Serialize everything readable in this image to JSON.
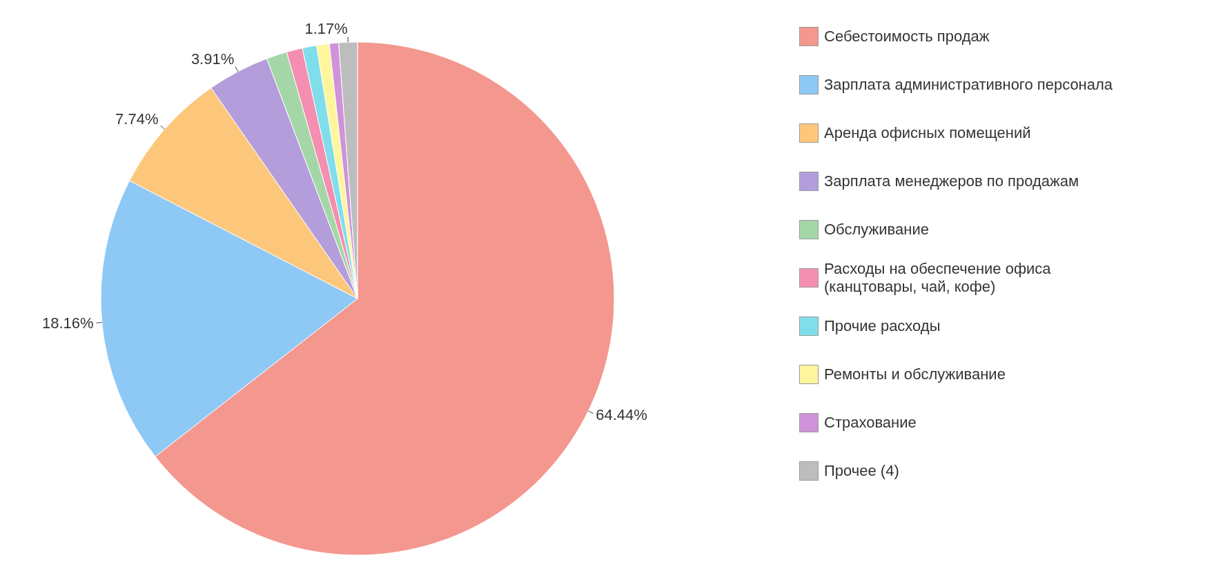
{
  "chart_data": {
    "type": "pie",
    "categories": [
      "Себестоимость продаж",
      "Зарплата административного персонала",
      "Аренда офисных помещений",
      "Зарплата менеджеров по продажам",
      "Обслуживание",
      "Расходы на обеспечение офиса (канцтовары, чай, кофе)",
      "Прочие расходы",
      "Ремонты и обслуживание",
      "Страхование",
      "Прочее (4)"
    ],
    "values": [
      64.44,
      18.16,
      7.74,
      3.91,
      1.3,
      1.0,
      0.9,
      0.8,
      0.58,
      1.17
    ],
    "value_labels": [
      "64.44%",
      "18.16%",
      "7.74%",
      "3.91%",
      null,
      null,
      null,
      null,
      null,
      "1.17%"
    ],
    "colors": [
      "#f4978e",
      "#8ec8f5",
      "#fdc77b",
      "#b39ddb",
      "#a5d6a7",
      "#f48fb1",
      "#80deea",
      "#fff59d",
      "#ce93d8",
      "#bdbdbd"
    ],
    "legend": "right"
  }
}
